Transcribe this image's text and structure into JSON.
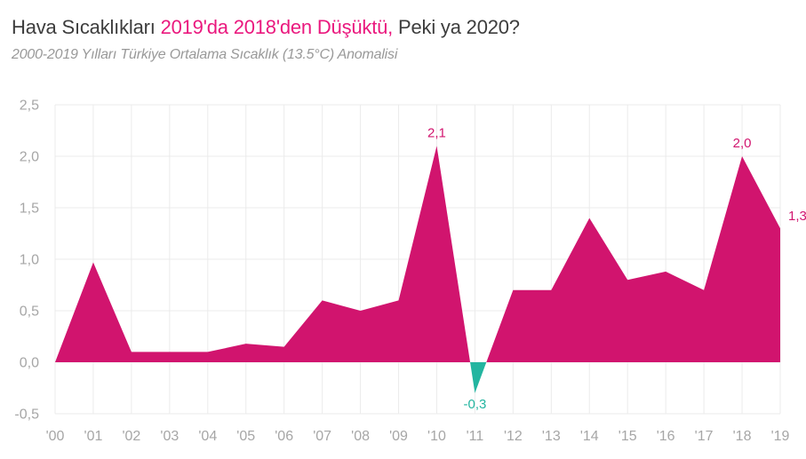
{
  "header": {
    "title_part1": "Hava Sıcaklıkları ",
    "title_highlight": "2019'da 2018'den Düşüktü,",
    "title_part2": " Peki ya 2020?",
    "subtitle": "2000-2019 Yılları Türkiye Ortalama Sıcaklık (13.5°C) Anomalisi"
  },
  "colors": {
    "title_text": "#3d3d3d",
    "title_highlight": "#ea187e",
    "subtitle_text": "#999999",
    "positive_fill": "#d1146e",
    "negative_fill": "#23b5a0",
    "gridline": "#ebebeb",
    "axis_label": "#a6a6a6",
    "background": "#ffffff"
  },
  "chart_data": {
    "type": "area",
    "title": "Hava Sıcaklıkları 2019'da 2018'den Düşüktü, Peki ya 2020?",
    "subtitle": "2000-2019 Yılları Türkiye Ortalama Sıcaklık (13.5°C) Anomalisi",
    "x": [
      2000,
      2001,
      2002,
      2003,
      2004,
      2005,
      2006,
      2007,
      2008,
      2009,
      2010,
      2011,
      2012,
      2013,
      2014,
      2015,
      2016,
      2017,
      2018,
      2019
    ],
    "x_tick_labels": [
      "'00",
      "'01",
      "'02",
      "'03",
      "'04",
      "'05",
      "'06",
      "'07",
      "'08",
      "'09",
      "'10",
      "'11",
      "'12",
      "'13",
      "'14",
      "'15",
      "'16",
      "'17",
      "'18",
      "'19"
    ],
    "values": [
      0.0,
      0.97,
      0.1,
      0.1,
      0.1,
      0.18,
      0.15,
      0.6,
      0.5,
      0.6,
      2.1,
      -0.3,
      0.7,
      0.7,
      1.4,
      0.8,
      0.88,
      0.7,
      2.0,
      1.3
    ],
    "baseline": 0,
    "ylim": [
      -0.5,
      2.5
    ],
    "y_ticks": [
      {
        "value": 2.5,
        "label": "2,5"
      },
      {
        "value": 2.0,
        "label": "2,0"
      },
      {
        "value": 1.5,
        "label": "1,5"
      },
      {
        "value": 1.0,
        "label": "1,0"
      },
      {
        "value": 0.5,
        "label": "0,5"
      },
      {
        "value": 0.0,
        "label": "0,0"
      },
      {
        "value": -0.5,
        "label": "-0,5"
      }
    ],
    "grid": "both",
    "legend_position": "none",
    "point_labels": [
      {
        "index": 10,
        "text": "2,1",
        "placement": "above",
        "color": "#d1146e"
      },
      {
        "index": 11,
        "text": "-0,3",
        "placement": "below",
        "color": "#23b5a0"
      },
      {
        "index": 18,
        "text": "2,0",
        "placement": "above",
        "color": "#d1146e"
      },
      {
        "index": 19,
        "text": "1,3",
        "placement": "right",
        "color": "#d1146e"
      }
    ]
  }
}
